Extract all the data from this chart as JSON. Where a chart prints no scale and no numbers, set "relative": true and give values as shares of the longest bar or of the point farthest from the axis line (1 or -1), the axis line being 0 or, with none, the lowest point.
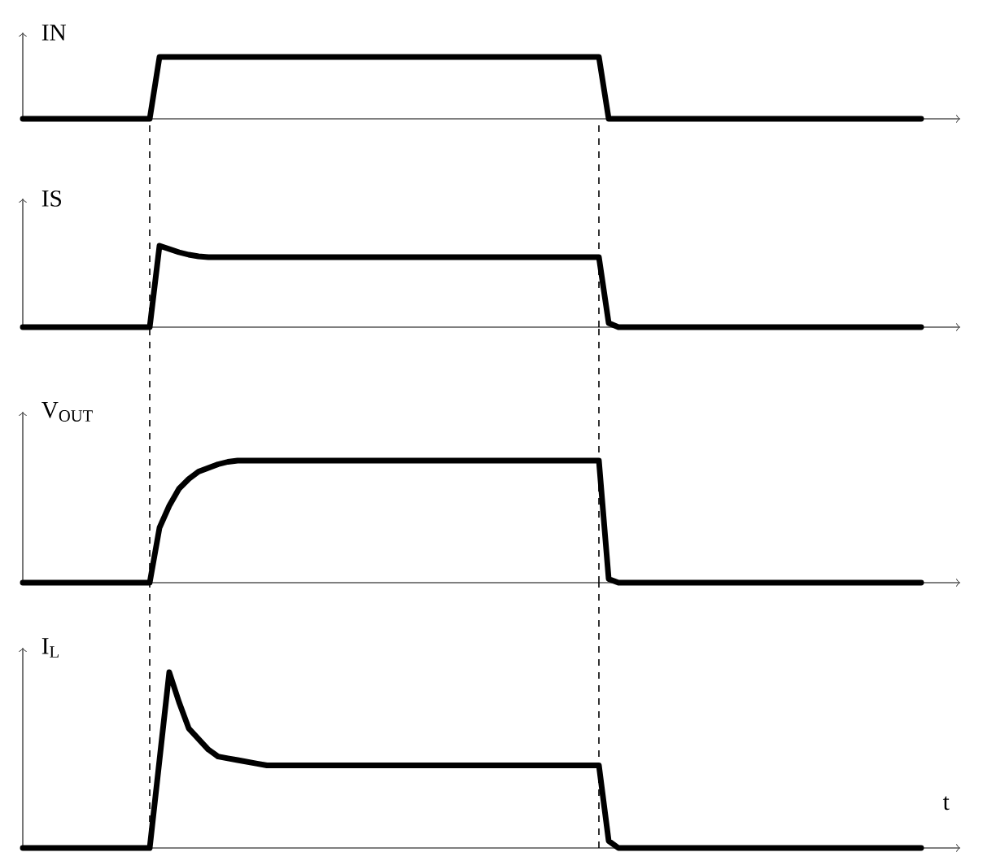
{
  "chart_data": [
    {
      "type": "line",
      "relative": true,
      "ylabel": "IN",
      "line_style": "solid",
      "categories": [
        null,
        null,
        null,
        null,
        null,
        null,
        null,
        null,
        null,
        null,
        null,
        null,
        null,
        null,
        null,
        null,
        null,
        null,
        null,
        null,
        null,
        null,
        null,
        null,
        null,
        null,
        null,
        null,
        null,
        null,
        null,
        null,
        null,
        null,
        null,
        null,
        null,
        null,
        null,
        null,
        null,
        null,
        null,
        null,
        null,
        null,
        null,
        null,
        null,
        null,
        null,
        null,
        null,
        null,
        null,
        null,
        null,
        null,
        null,
        null,
        null,
        null,
        null,
        null,
        null,
        null,
        null,
        null,
        null,
        null,
        null,
        null,
        null,
        null,
        null,
        null,
        null,
        null,
        null,
        null,
        null,
        null,
        null,
        null,
        null,
        null,
        null,
        null,
        null,
        null,
        null,
        null,
        null
      ],
      "series": [
        {
          "color": "#000000",
          "values": [
            0,
            0,
            0,
            0,
            0,
            0,
            0,
            0,
            0,
            0,
            0,
            0,
            0,
            0,
            1,
            1,
            1,
            1,
            1,
            1,
            1,
            1,
            1,
            1,
            1,
            1,
            1,
            1,
            1,
            1,
            1,
            1,
            1,
            1,
            1,
            1,
            1,
            1,
            1,
            1,
            1,
            1,
            1,
            1,
            1,
            1,
            1,
            1,
            1,
            1,
            1,
            1,
            1,
            1,
            1,
            1,
            1,
            1,
            1,
            1,
            0,
            0,
            0,
            0,
            0,
            0,
            0,
            0,
            0,
            0,
            0,
            0,
            0,
            0,
            0,
            0,
            0,
            0,
            0,
            0,
            0,
            0,
            0,
            0,
            0,
            0,
            0,
            0,
            0,
            0,
            0,
            0,
            0
          ]
        }
      ]
    },
    {
      "type": "line",
      "relative": true,
      "ylabel": "IS",
      "line_style": "solid",
      "categories": [
        null,
        null,
        null,
        null,
        null,
        null,
        null,
        null,
        null,
        null,
        null,
        null,
        null,
        null,
        null,
        null,
        null,
        null,
        null,
        null,
        null,
        null,
        null,
        null,
        null,
        null,
        null,
        null,
        null,
        null,
        null,
        null,
        null,
        null,
        null,
        null,
        null,
        null,
        null,
        null,
        null,
        null,
        null,
        null,
        null,
        null,
        null,
        null,
        null,
        null,
        null,
        null,
        null,
        null,
        null,
        null,
        null,
        null,
        null,
        null,
        null,
        null,
        null,
        null,
        null,
        null,
        null,
        null,
        null,
        null,
        null,
        null,
        null,
        null,
        null,
        null,
        null,
        null,
        null,
        null,
        null,
        null,
        null,
        null,
        null,
        null,
        null,
        null,
        null,
        null,
        null,
        null,
        null
      ],
      "series": [
        {
          "color": "#000000",
          "values": [
            0,
            0,
            0,
            0,
            0,
            0,
            0,
            0,
            0,
            0,
            0,
            0,
            0,
            0,
            1,
            0.96,
            0.92,
            0.89,
            0.87,
            0.86,
            0.86,
            0.86,
            0.86,
            0.86,
            0.86,
            0.86,
            0.86,
            0.86,
            0.86,
            0.86,
            0.86,
            0.86,
            0.86,
            0.86,
            0.86,
            0.86,
            0.86,
            0.86,
            0.86,
            0.86,
            0.86,
            0.86,
            0.86,
            0.86,
            0.86,
            0.86,
            0.86,
            0.86,
            0.86,
            0.86,
            0.86,
            0.86,
            0.86,
            0.86,
            0.86,
            0.86,
            0.86,
            0.86,
            0.86,
            0.86,
            0.05,
            0,
            0,
            0,
            0,
            0,
            0,
            0,
            0,
            0,
            0,
            0,
            0,
            0,
            0,
            0,
            0,
            0,
            0,
            0,
            0,
            0,
            0,
            0,
            0,
            0,
            0,
            0,
            0,
            0,
            0,
            0,
            0
          ]
        }
      ]
    },
    {
      "type": "line",
      "relative": true,
      "ylabel": "V$_{OUT}$",
      "line_style": "solid",
      "categories": [
        null,
        null,
        null,
        null,
        null,
        null,
        null,
        null,
        null,
        null,
        null,
        null,
        null,
        null,
        null,
        null,
        null,
        null,
        null,
        null,
        null,
        null,
        null,
        null,
        null,
        null,
        null,
        null,
        null,
        null,
        null,
        null,
        null,
        null,
        null,
        null,
        null,
        null,
        null,
        null,
        null,
        null,
        null,
        null,
        null,
        null,
        null,
        null,
        null,
        null,
        null,
        null,
        null,
        null,
        null,
        null,
        null,
        null,
        null,
        null,
        null,
        null,
        null,
        null,
        null,
        null,
        null,
        null,
        null,
        null,
        null,
        null,
        null,
        null,
        null,
        null,
        null,
        null,
        null,
        null,
        null,
        null,
        null,
        null,
        null,
        null,
        null,
        null,
        null,
        null,
        null,
        null,
        null
      ],
      "series": [
        {
          "color": "#000000",
          "values": [
            0,
            0,
            0,
            0,
            0,
            0,
            0,
            0,
            0,
            0,
            0,
            0,
            0,
            0,
            0.45,
            0.63,
            0.77,
            0.85,
            0.91,
            0.94,
            0.97,
            0.99,
            1,
            1,
            1,
            1,
            1,
            1,
            1,
            1,
            1,
            1,
            1,
            1,
            1,
            1,
            1,
            1,
            1,
            1,
            1,
            1,
            1,
            1,
            1,
            1,
            1,
            1,
            1,
            1,
            1,
            1,
            1,
            1,
            1,
            1,
            1,
            1,
            1,
            1,
            0.03,
            0,
            0,
            0,
            0,
            0,
            0,
            0,
            0,
            0,
            0,
            0,
            0,
            0,
            0,
            0,
            0,
            0,
            0,
            0,
            0,
            0,
            0,
            0,
            0,
            0,
            0,
            0,
            0,
            0,
            0,
            0,
            0
          ]
        }
      ]
    },
    {
      "type": "line",
      "relative": true,
      "ylabel": "I$_{L}$",
      "xlabel": "t",
      "line_style": "solid",
      "categories": [
        null,
        null,
        null,
        null,
        null,
        null,
        null,
        null,
        null,
        null,
        null,
        null,
        null,
        null,
        null,
        null,
        null,
        null,
        null,
        null,
        null,
        null,
        null,
        null,
        null,
        null,
        null,
        null,
        null,
        null,
        null,
        null,
        null,
        null,
        null,
        null,
        null,
        null,
        null,
        null,
        null,
        null,
        null,
        null,
        null,
        null,
        null,
        null,
        null,
        null,
        null,
        null,
        null,
        null,
        null,
        null,
        null,
        null,
        null,
        null,
        null,
        null,
        null,
        null,
        null,
        null,
        null,
        null,
        null,
        null,
        null,
        null,
        null,
        null,
        null,
        null,
        null,
        null,
        null,
        null,
        null,
        null,
        null,
        null,
        null,
        null,
        null,
        null,
        null,
        null,
        null,
        null,
        null
      ],
      "series": [
        {
          "color": "#000000",
          "values": [
            0,
            0,
            0,
            0,
            0,
            0,
            0,
            0,
            0,
            0,
            0,
            0,
            0,
            0,
            0.5,
            1,
            0.83,
            0.68,
            0.62,
            0.56,
            0.52,
            0.51,
            0.5,
            0.49,
            0.48,
            0.47,
            0.47,
            0.47,
            0.47,
            0.47,
            0.47,
            0.47,
            0.47,
            0.47,
            0.47,
            0.47,
            0.47,
            0.47,
            0.47,
            0.47,
            0.47,
            0.47,
            0.47,
            0.47,
            0.47,
            0.47,
            0.47,
            0.47,
            0.47,
            0.47,
            0.47,
            0.47,
            0.47,
            0.47,
            0.47,
            0.47,
            0.47,
            0.47,
            0.47,
            0.47,
            0.04,
            0,
            0,
            0,
            0,
            0,
            0,
            0,
            0,
            0,
            0,
            0,
            0,
            0,
            0,
            0,
            0,
            0,
            0,
            0,
            0,
            0,
            0,
            0,
            0,
            0,
            0,
            0,
            0,
            0,
            0,
            0,
            0
          ]
        }
      ]
    }
  ]
}
